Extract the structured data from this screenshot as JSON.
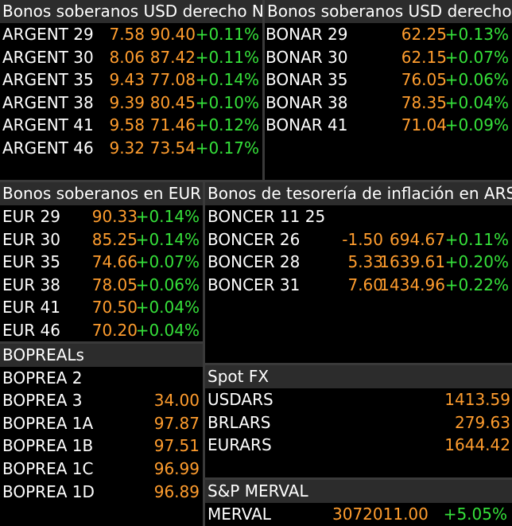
{
  "colors": {
    "background": "#000000",
    "header": "#2c2c2c",
    "orange": "#ff9d2e",
    "green": "#35e03a",
    "text": "#ffffff"
  },
  "panel_ny": {
    "title": "Bonos soberanos USD derecho NY",
    "rows": [
      {
        "name": "ARGENT 29",
        "yield": "7.58",
        "price": "90.40",
        "change": "+0.11%"
      },
      {
        "name": "ARGENT 30",
        "yield": "8.06",
        "price": "87.42",
        "change": "+0.11%"
      },
      {
        "name": "ARGENT 35",
        "yield": "9.43",
        "price": "77.08",
        "change": "+0.14%"
      },
      {
        "name": "ARGENT 38",
        "yield": "9.39",
        "price": "80.45",
        "change": "+0.10%"
      },
      {
        "name": "ARGENT 41",
        "yield": "9.58",
        "price": "71.46",
        "change": "+0.12%"
      },
      {
        "name": "ARGENT 46",
        "yield": "9.32",
        "price": "73.54",
        "change": "+0.17%"
      }
    ]
  },
  "panel_ar": {
    "title": "Bonos soberanos USD derecho Ar",
    "rows": [
      {
        "name": "BONAR 29",
        "price": "62.25",
        "change": "+0.13%"
      },
      {
        "name": "BONAR 30",
        "price": "62.15",
        "change": "+0.07%"
      },
      {
        "name": "BONAR 35",
        "price": "76.05",
        "change": "+0.06%"
      },
      {
        "name": "BONAR 38",
        "price": "78.35",
        "change": "+0.04%"
      },
      {
        "name": "BONAR 41",
        "price": "71.04",
        "change": "+0.09%"
      }
    ]
  },
  "panel_eur": {
    "title": "Bonos soberanos en EUR",
    "rows": [
      {
        "name": "EUR 29",
        "price": "90.33",
        "change": "+0.14%"
      },
      {
        "name": "EUR 30",
        "price": "85.25",
        "change": "+0.14%"
      },
      {
        "name": "EUR 35",
        "price": "74.66",
        "change": "+0.07%"
      },
      {
        "name": "EUR 38",
        "price": "78.05",
        "change": "+0.06%"
      },
      {
        "name": "EUR 41",
        "price": "70.50",
        "change": "+0.04%"
      },
      {
        "name": "EUR 46",
        "price": "70.20",
        "change": "+0.04%"
      }
    ]
  },
  "panel_boncer": {
    "title": "Bonos de tesorería de inflación en ARS",
    "rows": [
      {
        "name": "BONCER 11 25",
        "yield": "",
        "price": "",
        "change": ""
      },
      {
        "name": "BONCER 26",
        "yield": "-1.50",
        "price": "694.67",
        "change": "+0.11%"
      },
      {
        "name": "BONCER 28",
        "yield": "5.33",
        "price": "1639.61",
        "change": "+0.20%"
      },
      {
        "name": "BONCER 31",
        "yield": "7.60",
        "price": "1434.96",
        "change": "+0.22%"
      }
    ]
  },
  "panel_bopreal": {
    "title": "BOPREALs",
    "rows": [
      {
        "name": "BOPREA 2",
        "price": ""
      },
      {
        "name": "BOPREA 3",
        "price": "34.00"
      },
      {
        "name": "BOPREA 1A",
        "price": "97.87"
      },
      {
        "name": "BOPREA 1B",
        "price": "97.51"
      },
      {
        "name": "BOPREA 1C",
        "price": "96.99"
      },
      {
        "name": "BOPREA 1D",
        "price": "96.89"
      }
    ]
  },
  "panel_fx": {
    "title": "Spot FX",
    "rows": [
      {
        "name": "USDARS",
        "price": "1413.59"
      },
      {
        "name": "BRLARS",
        "price": "279.63"
      },
      {
        "name": "EURARS",
        "price": "1644.42"
      }
    ]
  },
  "panel_merval": {
    "title": "S&P MERVAL",
    "rows": [
      {
        "name": "MERVAL",
        "price": "3072011.000",
        "change": "+5.05%"
      }
    ]
  }
}
